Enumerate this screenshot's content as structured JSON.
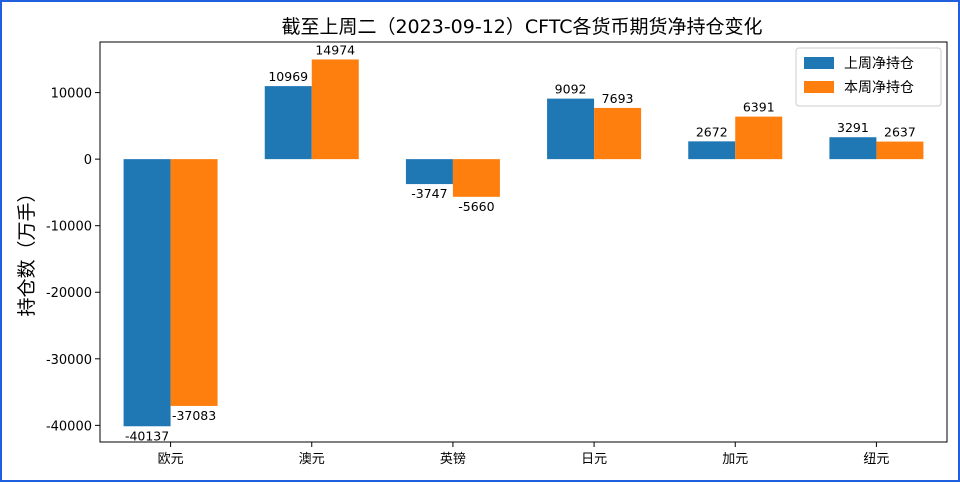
{
  "chart_data": {
    "type": "bar",
    "title": "截至上周二（2023-09-12）CFTC各货币期货净持仓变化",
    "xlabel": "",
    "ylabel": "持仓数（万手）",
    "categories": [
      "欧元",
      "澳元",
      "英镑",
      "日元",
      "加元",
      "纽元"
    ],
    "series": [
      {
        "name": "上周净持仓",
        "color": "#1f77b4",
        "values": [
          -40137,
          10969,
          -3747,
          9092,
          2672,
          3291
        ]
      },
      {
        "name": "本周净持仓",
        "color": "#ff7f0e",
        "values": [
          -37083,
          14974,
          -5660,
          7693,
          6391,
          2637
        ]
      }
    ],
    "ylim": [
      -42500,
      17600
    ],
    "yticks": [
      10000,
      0,
      -10000,
      -20000,
      -30000,
      -40000
    ],
    "grid": false,
    "legend_position": "top-right"
  }
}
